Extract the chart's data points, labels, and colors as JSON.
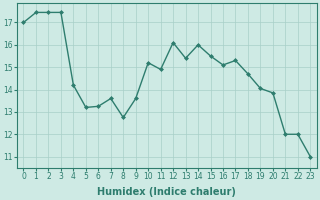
{
  "x": [
    0,
    1,
    2,
    3,
    4,
    5,
    6,
    7,
    8,
    9,
    10,
    11,
    12,
    13,
    14,
    15,
    16,
    17,
    18,
    19,
    20,
    21,
    22,
    23
  ],
  "y": [
    17.0,
    17.45,
    17.45,
    17.45,
    14.2,
    13.2,
    13.25,
    13.6,
    12.75,
    13.6,
    15.2,
    14.9,
    16.1,
    15.4,
    16.0,
    15.5,
    15.1,
    15.3,
    14.7,
    14.05,
    13.85,
    12.0,
    12.0,
    11.0
  ],
  "line_color": "#2e7d6e",
  "marker": "D",
  "markersize": 2.0,
  "linewidth": 1.0,
  "bg_color": "#ceeae4",
  "grid_major_color": "#a8cfc8",
  "grid_minor_color": "#c0ddd8",
  "xlabel": "Humidex (Indice chaleur)",
  "xlim": [
    -0.5,
    23.5
  ],
  "ylim": [
    10.5,
    17.85
  ],
  "yticks": [
    11,
    12,
    13,
    14,
    15,
    16,
    17
  ],
  "xticks": [
    0,
    1,
    2,
    3,
    4,
    5,
    6,
    7,
    8,
    9,
    10,
    11,
    12,
    13,
    14,
    15,
    16,
    17,
    18,
    19,
    20,
    21,
    22,
    23
  ],
  "tick_fontsize": 5.5,
  "xlabel_fontsize": 7.0,
  "spine_color": "#2e7d6e",
  "tick_color": "#2e7d6e"
}
